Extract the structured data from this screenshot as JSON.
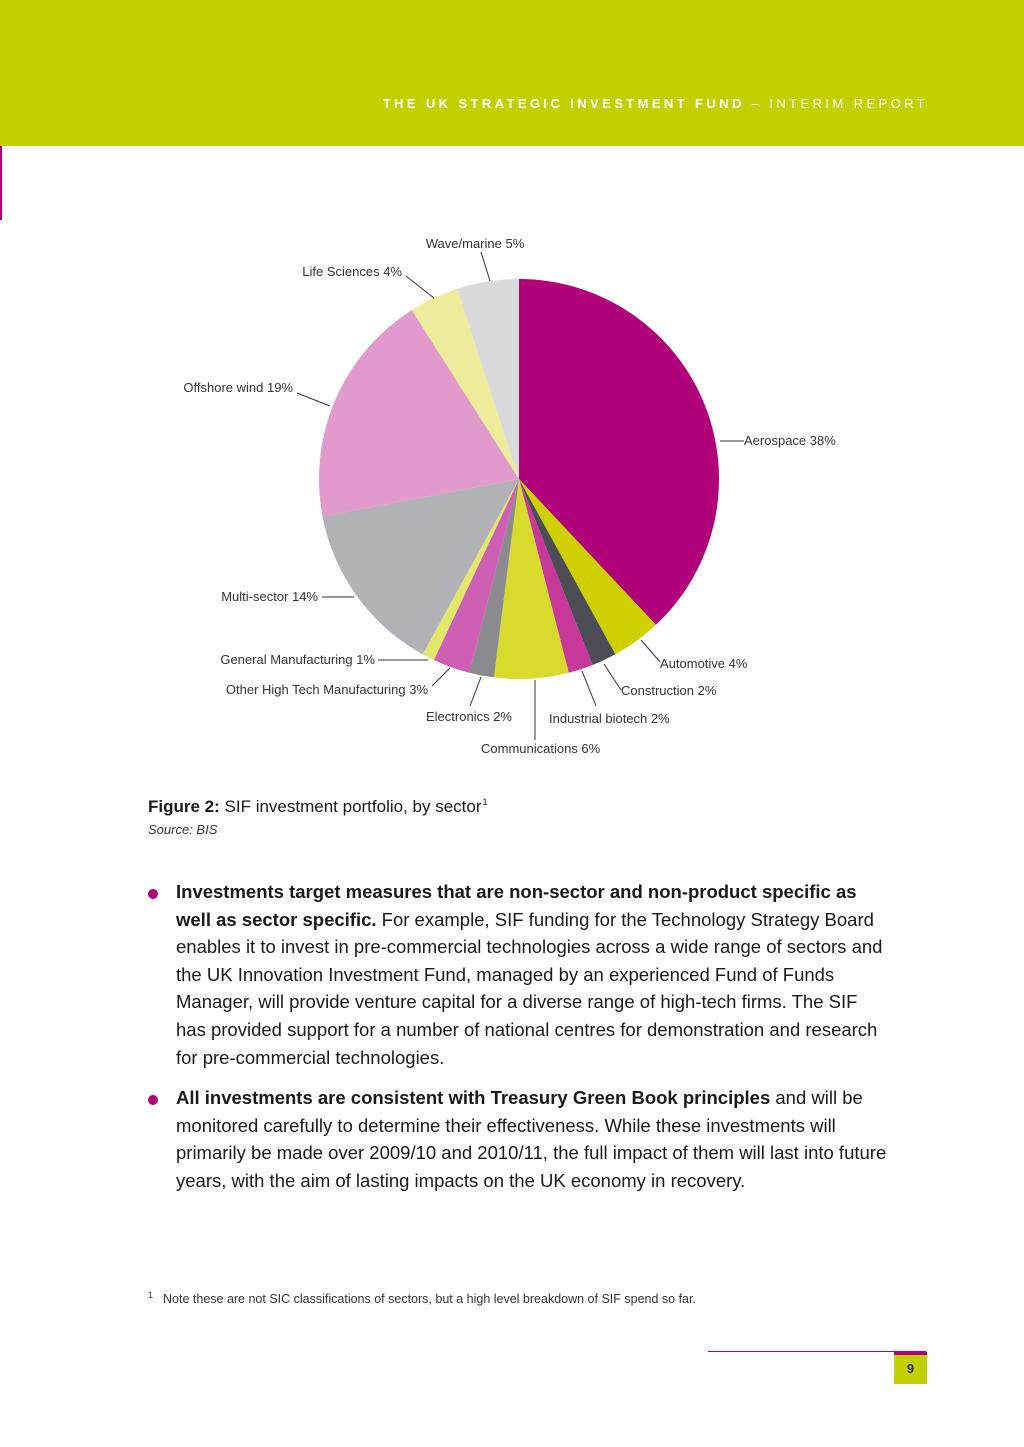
{
  "header": {
    "title_bold": "THE UK STRATEGIC INVESTMENT FUND",
    "title_rest": " – INTERIM REPORT",
    "band_color": "#c3d000",
    "accent_color": "#b0007a"
  },
  "chart_data": {
    "type": "pie",
    "title": "",
    "start": "12 o'clock, clockwise",
    "slices": [
      {
        "label": "Aerospace 38%",
        "value": 38,
        "color": "#b0007a"
      },
      {
        "label": "Automotive 4%",
        "value": 4,
        "color": "#cfd000"
      },
      {
        "label": "Construction 2%",
        "value": 2,
        "color": "#4d4d55"
      },
      {
        "label": "Industrial biotech 2%",
        "value": 2,
        "color": "#c8379a"
      },
      {
        "label": "Communications 6%",
        "value": 6,
        "color": "#d8da2e"
      },
      {
        "label": "Electronics 2%",
        "value": 2,
        "color": "#8a8a8f"
      },
      {
        "label": "Other High Tech Manufacturing 3%",
        "value": 3,
        "color": "#cf5fb4"
      },
      {
        "label": "General Manufacturing 1%",
        "value": 1,
        "color": "#e4e86a"
      },
      {
        "label": "Multi-sector 14%",
        "value": 14,
        "color": "#b1b2b5"
      },
      {
        "label": "Offshore wind 19%",
        "value": 19,
        "color": "#e09acb"
      },
      {
        "label": "Life Sciences 4%",
        "value": 4,
        "color": "#eeec9a"
      },
      {
        "label": "Wave/marine 5%",
        "value": 5,
        "color": "#d9dadc"
      }
    ]
  },
  "figure": {
    "caption_bold": "Figure 2:",
    "caption_text": " SIF investment portfolio, by sector",
    "caption_sup": "1",
    "source": "Source: BIS"
  },
  "bullets": [
    {
      "bold": "Investments target measures that are non-sector and non-product specific as well as sector specific.",
      "text": " For example, SIF funding for the Technology Strategy Board enables it to invest in pre-commercial technologies across a wide range of sectors and the UK Innovation Investment Fund, managed by an experienced Fund of Funds Manager, will provide venture capital for a diverse range of high-tech firms. The SIF has provided support for a number of national centres for demonstration and research for pre-commercial technologies."
    },
    {
      "bold": "All investments are consistent with Treasury Green Book principles",
      "text": " and will be monitored carefully to determine their effectiveness. While these investments will primarily be made over 2009/10 and 2010/11, the full impact of them will last into future years, with the aim of lasting impacts on the UK economy in recovery."
    }
  ],
  "footnote": {
    "num": "1",
    "text": "Note these are not SIC classifications of sectors, but a high level breakdown of SIF spend so far."
  },
  "page_number": "9"
}
